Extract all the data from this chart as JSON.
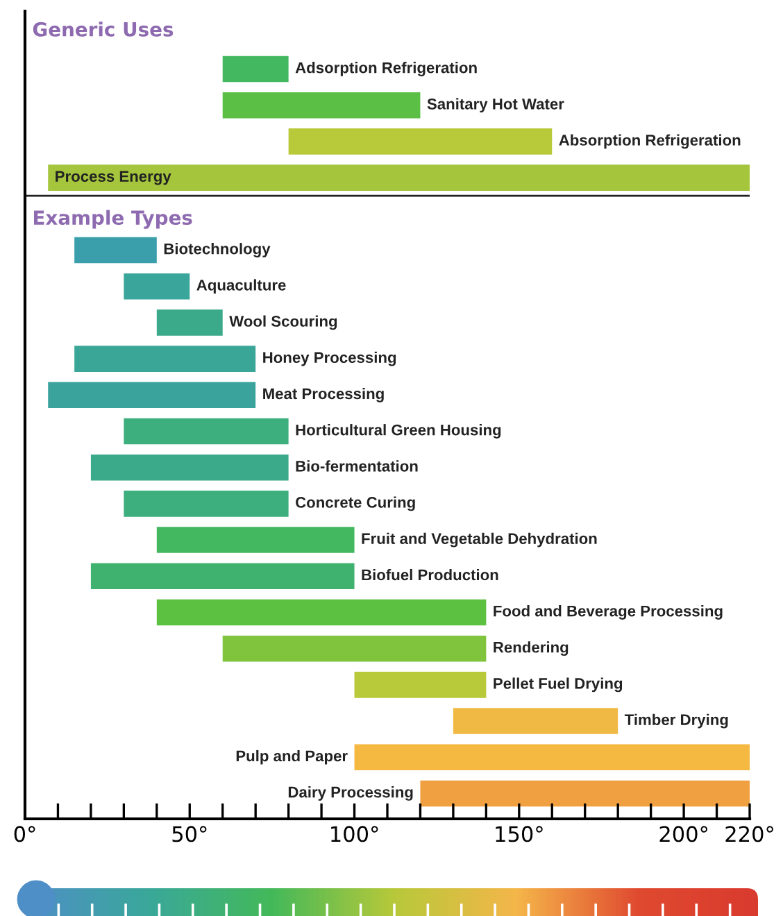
{
  "chart_data": {
    "type": "bar",
    "orientation": "horizontal",
    "title": "Generic Uses",
    "annotations": [
      "Example Types"
    ],
    "categories": [
      "Adsorption Refrigeration",
      "Sanitary Hot Water",
      "Absorption Refrigeration",
      "Process Energy",
      null,
      "Biotechnology",
      "Aquaculture",
      "Wool Scouring",
      "Honey Processing",
      "Meat Processing",
      "Horticultural Green Housing",
      "Bio-fermentation",
      "Concrete Curing",
      "Fruit and Vegetable Dehydration",
      "Biofuel Production",
      "Food and Beverage Processing",
      "Rendering",
      "Pellet Fuel Drying",
      "Timber Drying",
      "Pulp and Paper",
      "Dairy Processing"
    ],
    "base": [
      60,
      60,
      80,
      7,
      null,
      15,
      30,
      40,
      15,
      7,
      30,
      20,
      30,
      40,
      20,
      40,
      60,
      100,
      130,
      100,
      120
    ],
    "values": [
      20,
      60,
      80,
      213,
      null,
      25,
      20,
      20,
      55,
      63,
      50,
      60,
      50,
      60,
      80,
      100,
      80,
      40,
      50,
      120,
      100
    ],
    "colors": [
      "#44b860",
      "#5cbf45",
      "#b8c93a",
      "#a5c63c",
      null,
      "#3a9fab",
      "#3aa59a",
      "#3aaa8a",
      "#3aa697",
      "#3aa49c",
      "#3dae7d",
      "#3aaa8a",
      "#3dae7d",
      "#44b860",
      "#40b270",
      "#5cc040",
      "#80c43d",
      "#b8c93a",
      "#f0b943",
      "#f5b942",
      "#f0a040"
    ],
    "xlim": [
      0,
      220
    ],
    "xticks": [
      {
        "value": 0,
        "label": "0°"
      },
      {
        "value": 10,
        "label": null
      },
      {
        "value": 20,
        "label": null
      },
      {
        "value": 30,
        "label": null
      },
      {
        "value": 40,
        "label": null
      },
      {
        "value": 50,
        "label": "50°"
      },
      {
        "value": 60,
        "label": null
      },
      {
        "value": 70,
        "label": null
      },
      {
        "value": 80,
        "label": null
      },
      {
        "value": 90,
        "label": null
      },
      {
        "value": 100,
        "label": "100°"
      },
      {
        "value": 110,
        "label": null
      },
      {
        "value": 120,
        "label": null
      },
      {
        "value": 130,
        "label": null
      },
      {
        "value": 140,
        "label": null
      },
      {
        "value": 150,
        "label": "150°"
      },
      {
        "value": 160,
        "label": null
      },
      {
        "value": 170,
        "label": null
      },
      {
        "value": 180,
        "label": null
      },
      {
        "value": 190,
        "label": null
      },
      {
        "value": 200,
        "label": "200°"
      },
      {
        "value": 210,
        "label": null
      },
      {
        "value": 220,
        "label": "220°"
      }
    ],
    "tick_labels": "x"
  }
}
